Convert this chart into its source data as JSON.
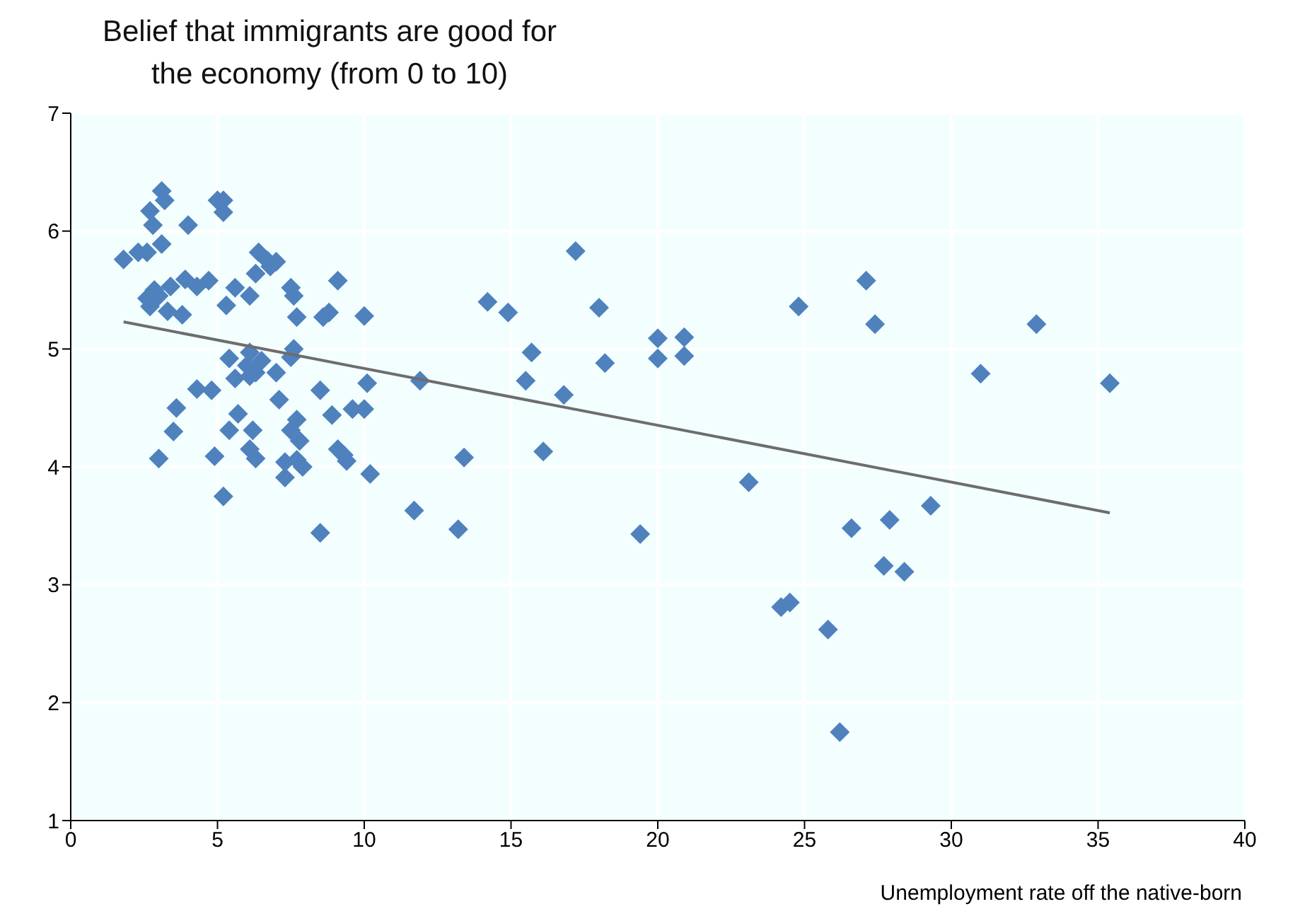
{
  "chart_data": {
    "type": "scatter",
    "ylabel": "Belief that immigrants are good for the economy (from 0 to 10)",
    "xlabel": "Unemployment rate off the native-born",
    "xlim": [
      0,
      40
    ],
    "xticks": [
      0,
      5,
      10,
      15,
      20,
      25,
      30,
      35,
      40
    ],
    "ylim": [
      1,
      7
    ],
    "yticks": [
      1,
      2,
      3,
      4,
      5,
      6,
      7
    ],
    "grid": true,
    "marker": "diamond",
    "series": [
      {
        "color": "#4f81bd",
        "x": [
          1.8,
          2.3,
          2.6,
          2.7,
          2.8,
          3.1,
          3.2,
          3.1,
          2.6,
          2.7,
          2.85,
          3.0,
          3.4,
          3.3,
          3.9,
          4.3,
          4.7,
          4.0,
          3.8,
          3.6,
          3.5,
          3.0,
          4.3,
          4.8,
          4.9,
          5.0,
          5.2,
          5.2,
          5.3,
          5.6,
          5.4,
          5.6,
          5.7,
          5.4,
          5.2,
          6.1,
          6.0,
          6.1,
          6.3,
          6.2,
          6.1,
          6.3,
          6.1,
          6.3,
          6.4,
          6.7,
          6.8,
          7.0,
          6.5,
          7.0,
          7.1,
          7.5,
          7.3,
          7.3,
          7.5,
          7.6,
          7.7,
          7.6,
          7.5,
          7.7,
          7.8,
          7.7,
          7.9,
          8.5,
          8.5,
          8.6,
          8.8,
          9.1,
          8.9,
          9.1,
          9.3,
          9.4,
          9.6,
          10.0,
          10.1,
          10.0,
          10.2,
          17.2,
          14.2,
          14.9,
          18.0,
          15.7,
          15.5,
          16.8,
          18.2,
          20.0,
          20.0,
          20.9,
          20.9,
          11.9,
          13.4,
          16.1,
          11.7,
          13.2,
          19.4,
          23.1,
          27.1,
          24.8,
          27.4,
          32.9,
          31.0,
          35.4,
          26.6,
          27.9,
          29.3,
          27.7,
          28.4,
          24.2,
          24.5,
          25.8,
          26.2
        ],
        "values": [
          5.76,
          5.82,
          5.82,
          6.17,
          6.05,
          6.34,
          6.26,
          5.89,
          5.43,
          5.36,
          5.5,
          5.45,
          5.53,
          5.32,
          5.59,
          5.53,
          5.58,
          6.05,
          5.29,
          4.5,
          4.3,
          4.07,
          4.66,
          4.65,
          4.09,
          6.26,
          6.26,
          6.16,
          5.37,
          5.52,
          4.92,
          4.75,
          4.45,
          4.31,
          3.75,
          4.97,
          4.86,
          4.77,
          4.8,
          4.31,
          4.15,
          4.07,
          5.45,
          5.64,
          5.82,
          5.75,
          5.7,
          5.74,
          4.9,
          4.8,
          4.57,
          4.31,
          4.04,
          3.91,
          5.52,
          5.45,
          5.27,
          5.0,
          4.93,
          4.06,
          4.22,
          4.4,
          4.0,
          3.44,
          4.65,
          5.27,
          5.31,
          5.58,
          4.44,
          4.15,
          4.1,
          4.05,
          4.49,
          4.49,
          4.71,
          5.28,
          3.94,
          5.83,
          5.4,
          5.31,
          5.35,
          4.97,
          4.73,
          4.61,
          4.88,
          5.09,
          4.92,
          5.1,
          4.94,
          4.73,
          4.08,
          4.13,
          3.63,
          3.47,
          3.43,
          3.87,
          5.58,
          5.36,
          5.21,
          5.21,
          4.79,
          4.71,
          3.48,
          3.55,
          3.67,
          3.16,
          3.11,
          2.81,
          2.85,
          2.62,
          1.75
        ]
      },
      {
        "type": "line",
        "color": "#6d6d6d",
        "marker": "none",
        "x": [
          1.8,
          35.4
        ],
        "values": [
          5.23,
          3.61
        ]
      }
    ]
  }
}
